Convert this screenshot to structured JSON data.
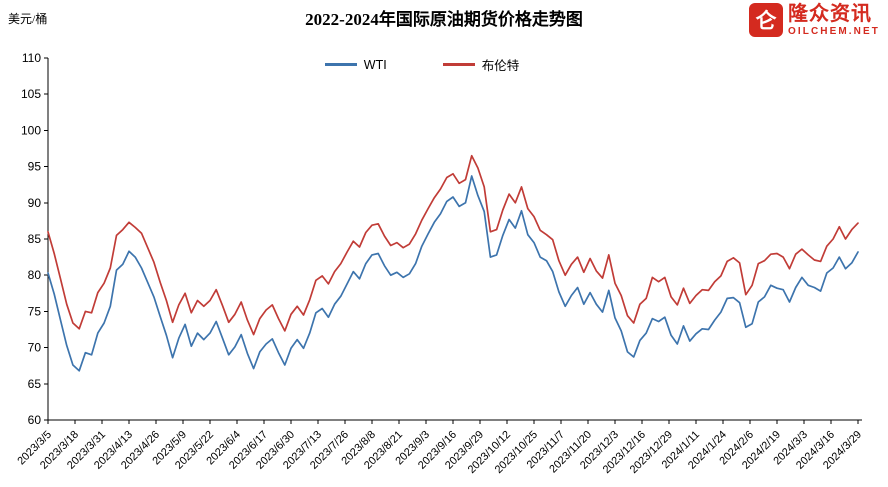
{
  "logo": {
    "icon_char": "仑",
    "brand": "隆众资讯",
    "domain": "OILCHEM.NET",
    "color": "#d42a1f"
  },
  "chart_data": {
    "type": "line",
    "title": "2022-2024年国际原油期货价格走势图",
    "ylabel": "美元/桶",
    "ylim": [
      60,
      110
    ],
    "ytick_step": 5,
    "grid": false,
    "legend_position": "top-center",
    "x": {
      "start": 0,
      "step": 3,
      "unit": "day"
    },
    "xlim_days": [
      0,
      390
    ],
    "tick_day_step": 13,
    "x_tick_labels": [
      "2023/3/5",
      "2023/3/18",
      "2023/3/31",
      "2023/4/13",
      "2023/4/26",
      "2023/5/9",
      "2023/5/22",
      "2023/6/4",
      "2023/6/17",
      "2023/6/30",
      "2023/7/13",
      "2023/7/26",
      "2023/8/8",
      "2023/8/21",
      "2023/9/3",
      "2023/9/16",
      "2023/9/29",
      "2023/10/12",
      "2023/10/25",
      "2023/11/7",
      "2023/11/20",
      "2023/12/3",
      "2023/12/16",
      "2023/12/29",
      "2024/1/11",
      "2024/1/24",
      "2024/2/6",
      "2024/2/19",
      "2024/3/3",
      "2024/3/16",
      "2024/3/29"
    ],
    "series": [
      {
        "name": "WTI",
        "color": "#3d74ad",
        "values": [
          80.3,
          77.4,
          73.8,
          70.3,
          67.6,
          66.8,
          69.3,
          69.0,
          72.0,
          73.4,
          75.7,
          80.7,
          81.5,
          83.3,
          82.5,
          81.0,
          79.0,
          77.0,
          74.3,
          71.7,
          68.6,
          71.3,
          73.2,
          70.2,
          72.0,
          71.1,
          72.0,
          73.6,
          71.3,
          69.0,
          70.1,
          71.8,
          69.2,
          67.1,
          69.4,
          70.5,
          71.2,
          69.3,
          67.6,
          69.9,
          71.1,
          69.9,
          72.0,
          74.8,
          75.4,
          74.2,
          76.0,
          77.1,
          78.8,
          80.5,
          79.5,
          81.6,
          82.8,
          83.0,
          81.3,
          80.0,
          80.4,
          79.7,
          80.2,
          81.6,
          84.0,
          85.7,
          87.3,
          88.5,
          90.2,
          90.8,
          89.5,
          90.0,
          93.7,
          91.0,
          88.8,
          82.5,
          82.8,
          85.5,
          87.7,
          86.5,
          88.9,
          85.6,
          84.5,
          82.5,
          82.0,
          80.5,
          77.7,
          75.7,
          77.2,
          78.3,
          76.0,
          77.6,
          76.0,
          74.9,
          77.9,
          74.1,
          72.3,
          69.4,
          68.7,
          71.0,
          72.0,
          74.0,
          73.6,
          74.2,
          71.7,
          70.5,
          73.0,
          70.9,
          71.9,
          72.6,
          72.5,
          73.8,
          74.9,
          76.8,
          76.9,
          76.2,
          72.8,
          73.3,
          76.3,
          77.0,
          78.6,
          78.2,
          78.0,
          76.3,
          78.3,
          79.7,
          78.6,
          78.3,
          77.8,
          80.3,
          81.0,
          82.5,
          80.9,
          81.7,
          83.2
        ]
      },
      {
        "name": "布伦特",
        "color": "#c13c37",
        "values": [
          86.0,
          83.0,
          79.5,
          76.0,
          73.4,
          72.6,
          75.0,
          74.8,
          77.6,
          78.9,
          81.0,
          85.5,
          86.3,
          87.3,
          86.6,
          85.8,
          83.8,
          81.8,
          79.0,
          76.5,
          73.5,
          75.9,
          77.5,
          74.8,
          76.5,
          75.7,
          76.5,
          78.0,
          75.8,
          73.5,
          74.6,
          76.3,
          73.8,
          71.8,
          74.0,
          75.2,
          75.9,
          74.0,
          72.3,
          74.6,
          75.7,
          74.5,
          76.6,
          79.3,
          79.9,
          78.8,
          80.5,
          81.6,
          83.2,
          84.7,
          83.9,
          85.9,
          86.9,
          87.1,
          85.4,
          84.1,
          84.5,
          83.8,
          84.3,
          85.7,
          87.6,
          89.2,
          90.7,
          91.9,
          93.5,
          94.0,
          92.7,
          93.2,
          96.5,
          94.8,
          92.2,
          86.0,
          86.3,
          89.0,
          91.2,
          90.0,
          92.2,
          89.2,
          88.1,
          86.2,
          85.6,
          84.9,
          82.0,
          80.0,
          81.5,
          82.5,
          80.4,
          82.3,
          80.6,
          79.6,
          82.8,
          78.9,
          77.2,
          74.4,
          73.4,
          76.0,
          76.8,
          79.7,
          79.1,
          79.7,
          77.0,
          75.9,
          78.2,
          76.1,
          77.2,
          78.0,
          77.9,
          79.1,
          79.9,
          81.9,
          82.4,
          81.7,
          77.3,
          78.6,
          81.6,
          82.0,
          82.9,
          83.0,
          82.5,
          80.9,
          82.9,
          83.6,
          82.8,
          82.1,
          81.9,
          84.0,
          85.0,
          86.7,
          85.0,
          86.3,
          87.2
        ]
      }
    ]
  }
}
